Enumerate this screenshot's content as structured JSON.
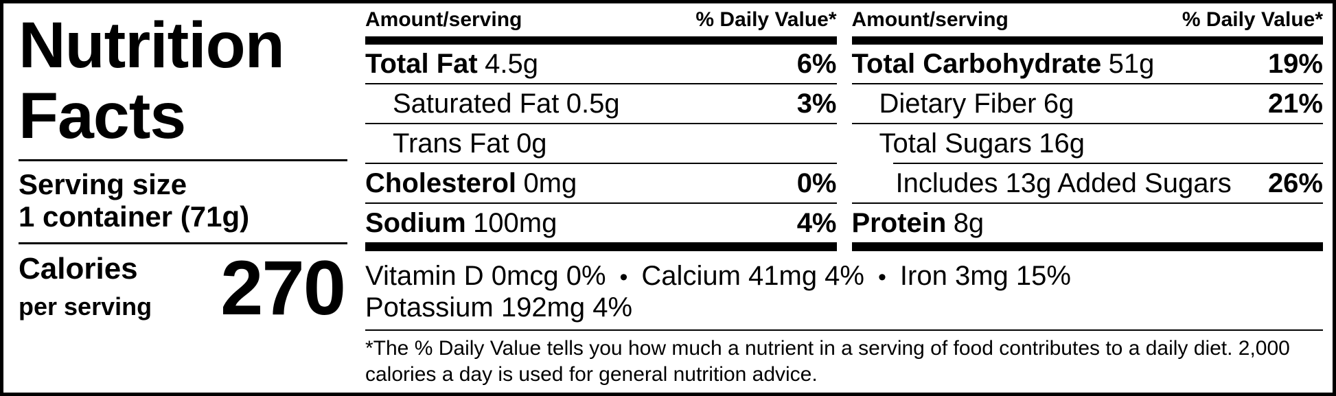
{
  "colors": {
    "ink": "#000000",
    "paper": "#ffffff"
  },
  "left_panel": {
    "title_line1": "Nutrition",
    "title_line2": "Facts",
    "serving_size_label": "Serving size",
    "serving_size_value": "1 container (71g)",
    "calories_label": "Calories",
    "calories_sublabel": "per serving",
    "calories_value": "270"
  },
  "columns": [
    {
      "header": {
        "amount_label": "Amount/serving",
        "dv_label": "% Daily Value*"
      },
      "rows": [
        {
          "name": "Total Fat",
          "amount": "4.5g",
          "daily_value": "6%"
        },
        {
          "name": "Saturated Fat",
          "amount": "0.5g",
          "daily_value": "3%"
        },
        {
          "name": "Trans Fat",
          "amount": "0g",
          "daily_value": ""
        },
        {
          "name": "Cholesterol",
          "amount": "0mg",
          "daily_value": "0%"
        },
        {
          "name": "Sodium",
          "amount": "100mg",
          "daily_value": "4%"
        }
      ]
    },
    {
      "header": {
        "amount_label": "Amount/serving",
        "dv_label": "% Daily Value*"
      },
      "rows": [
        {
          "name": "Total Carbohydrate",
          "amount": "51g",
          "daily_value": "19%"
        },
        {
          "name": "Dietary Fiber",
          "amount": "6g",
          "daily_value": "21%"
        },
        {
          "name": "Total Sugars",
          "amount": "16g",
          "daily_value": ""
        },
        {
          "name": "Includes 13g Added Sugars",
          "amount": "",
          "daily_value": "26%"
        },
        {
          "name": "Protein",
          "amount": "8g",
          "daily_value": ""
        }
      ]
    }
  ],
  "micronutrients": {
    "bullet": "•",
    "items": [
      "Vitamin D 0mcg 0%",
      "Calcium 41mg 4%",
      "Iron 3mg 15%",
      "Potassium 192mg 4%"
    ]
  },
  "footnote": "*The % Daily Value tells you how much a nutrient in a serving of food contributes to a daily diet. 2,000 calories a day is used for general nutrition advice."
}
